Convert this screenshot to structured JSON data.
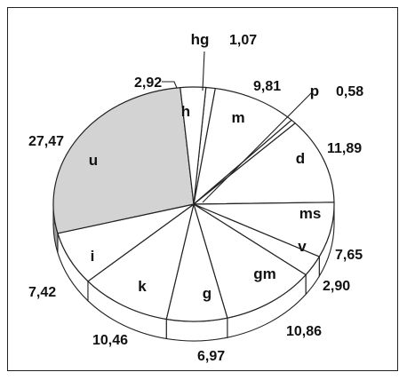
{
  "chart_data": {
    "type": "pie",
    "title": "",
    "style": "3d",
    "highlight_color": "#d3d3d3",
    "slice_color": "#ffffff",
    "outline_color": "#222222",
    "slices": [
      {
        "code": "hg",
        "value_text": "1,07",
        "value": 1.07,
        "highlight": false
      },
      {
        "code": "m",
        "value_text": "9,81",
        "value": 9.81,
        "highlight": false
      },
      {
        "code": "p",
        "value_text": "0,58",
        "value": 0.58,
        "highlight": false
      },
      {
        "code": "d",
        "value_text": "11,89",
        "value": 11.89,
        "highlight": false
      },
      {
        "code": "ms",
        "value_text": "7,65",
        "value": 7.65,
        "highlight": false
      },
      {
        "code": "v",
        "value_text": "2,90",
        "value": 2.9,
        "highlight": false
      },
      {
        "code": "gm",
        "value_text": "10,86",
        "value": 10.86,
        "highlight": false
      },
      {
        "code": "g",
        "value_text": "6,97",
        "value": 6.97,
        "highlight": false
      },
      {
        "code": "k",
        "value_text": "10,46",
        "value": 10.46,
        "highlight": false
      },
      {
        "code": "i",
        "value_text": "7,42",
        "value": 7.42,
        "highlight": false
      },
      {
        "code": "u",
        "value_text": "27,47",
        "value": 27.47,
        "highlight": true
      },
      {
        "code": "h",
        "value_text": "2,92",
        "value": 2.92,
        "highlight": false
      }
    ]
  }
}
